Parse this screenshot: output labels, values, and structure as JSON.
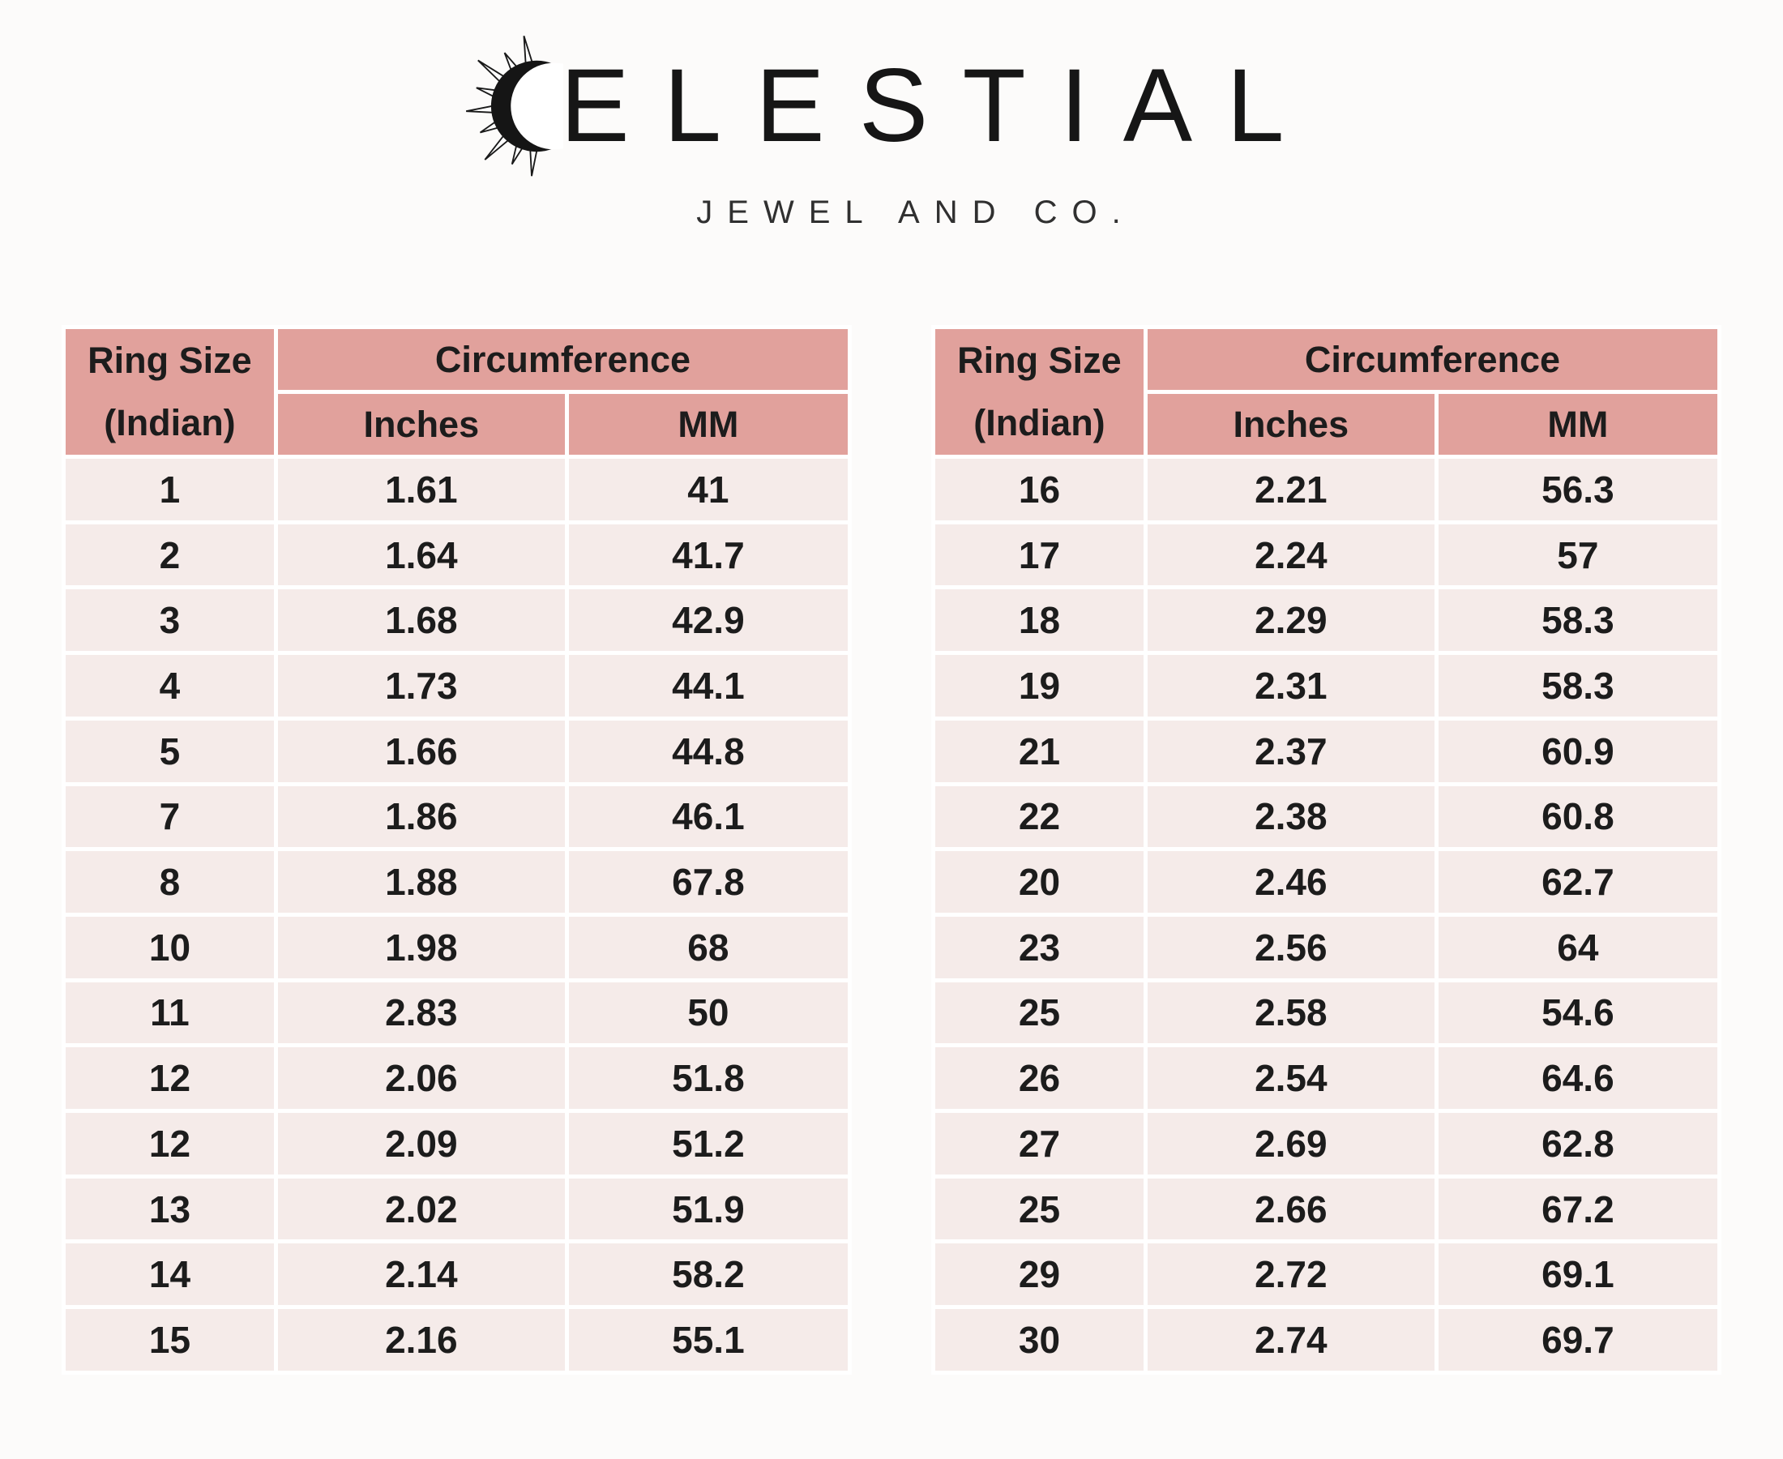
{
  "brand": {
    "name": "CELESTIAL",
    "display_text": "ELESTIAL",
    "subtitle": "JEWEL AND CO."
  },
  "columns": {
    "ring_size_line1": "Ring Size",
    "ring_size_line2": "(Indian)",
    "circumference": "Circumference",
    "inches": "Inches",
    "mm": "MM"
  },
  "tables": [
    {
      "rows": [
        [
          "1",
          "1.61",
          "41"
        ],
        [
          "2",
          "1.64",
          "41.7"
        ],
        [
          "3",
          "1.68",
          "42.9"
        ],
        [
          "4",
          "1.73",
          "44.1"
        ],
        [
          "5",
          "1.66",
          "44.8"
        ],
        [
          "7",
          "1.86",
          "46.1"
        ],
        [
          "8",
          "1.88",
          "67.8"
        ],
        [
          "10",
          "1.98",
          "68"
        ],
        [
          "11",
          "2.83",
          "50"
        ],
        [
          "12",
          "2.06",
          "51.8"
        ],
        [
          "12",
          "2.09",
          "51.2"
        ],
        [
          "13",
          "2.02",
          "51.9"
        ],
        [
          "14",
          "2.14",
          "58.2"
        ],
        [
          "15",
          "2.16",
          "55.1"
        ]
      ]
    },
    {
      "rows": [
        [
          "16",
          "2.21",
          "56.3"
        ],
        [
          "17",
          "2.24",
          "57"
        ],
        [
          "18",
          "2.29",
          "58.3"
        ],
        [
          "19",
          "2.31",
          "58.3"
        ],
        [
          "21",
          "2.37",
          "60.9"
        ],
        [
          "22",
          "2.38",
          "60.8"
        ],
        [
          "20",
          "2.46",
          "62.7"
        ],
        [
          "23",
          "2.56",
          "64"
        ],
        [
          "25",
          "2.58",
          "54.6"
        ],
        [
          "26",
          "2.54",
          "64.6"
        ],
        [
          "27",
          "2.69",
          "62.8"
        ],
        [
          "25",
          "2.66",
          "67.2"
        ],
        [
          "29",
          "2.72",
          "69.1"
        ],
        [
          "30",
          "2.74",
          "69.7"
        ]
      ]
    }
  ],
  "colors": {
    "page_bg": "#fcfbfa",
    "header_bg": "#e1a19c",
    "row_bg": "#f5ebe9",
    "text": "#1c1c1c"
  }
}
